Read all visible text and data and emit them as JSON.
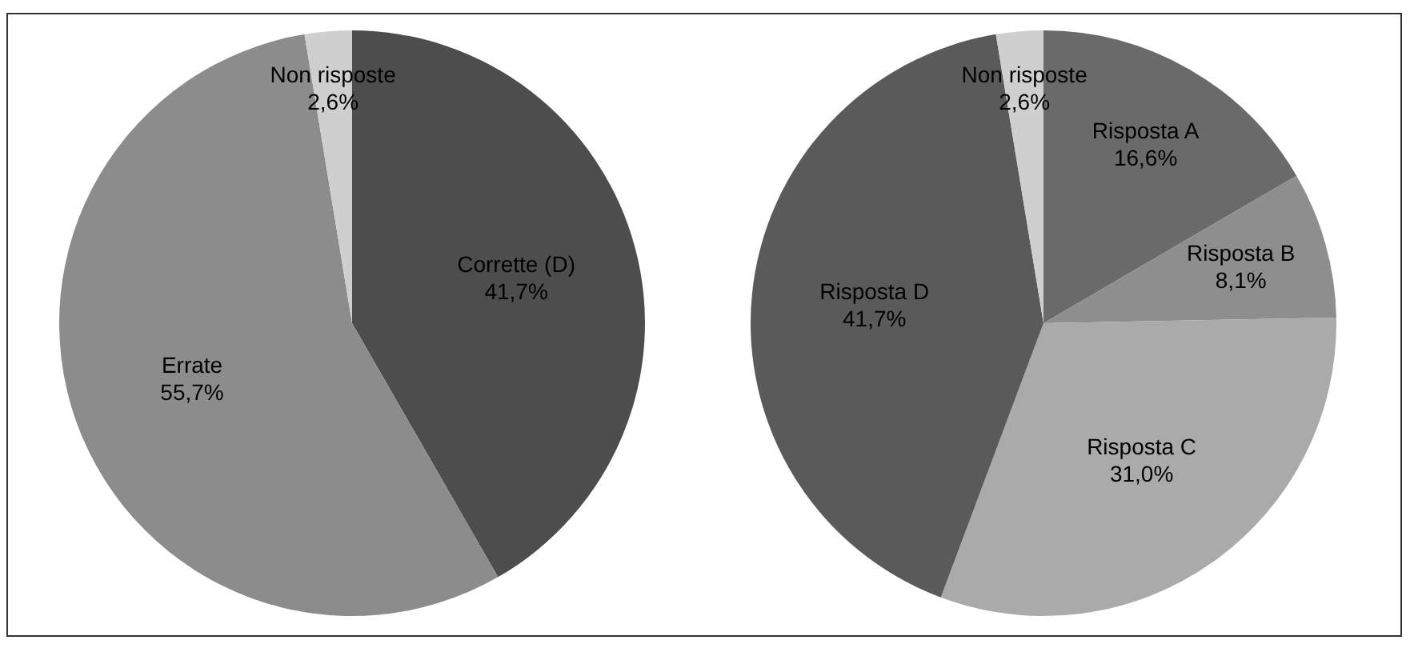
{
  "chart_data": [
    {
      "type": "pie",
      "categories": [
        "Corrette (D)",
        "Errate",
        "Non risposte"
      ],
      "values": [
        41.7,
        55.7,
        2.6
      ],
      "colors": [
        "#4d4d4d",
        "#8c8c8c",
        "#cfcfcf"
      ],
      "value_labels": [
        "41,7%",
        "55,7%",
        "2,6%"
      ],
      "legend": false
    },
    {
      "type": "pie",
      "categories": [
        "Risposta A",
        "Risposta B",
        "Risposta C",
        "Risposta D",
        "Non risposte"
      ],
      "values": [
        16.6,
        8.1,
        31.0,
        41.7,
        2.6
      ],
      "colors": [
        "#6a6a6a",
        "#8e8e8e",
        "#aaaaaa",
        "#5a5a5a",
        "#cfcfcf"
      ],
      "value_labels": [
        "16,6%",
        "8,1%",
        "31,0%",
        "41,7%",
        "2,6%"
      ],
      "legend": false
    }
  ]
}
